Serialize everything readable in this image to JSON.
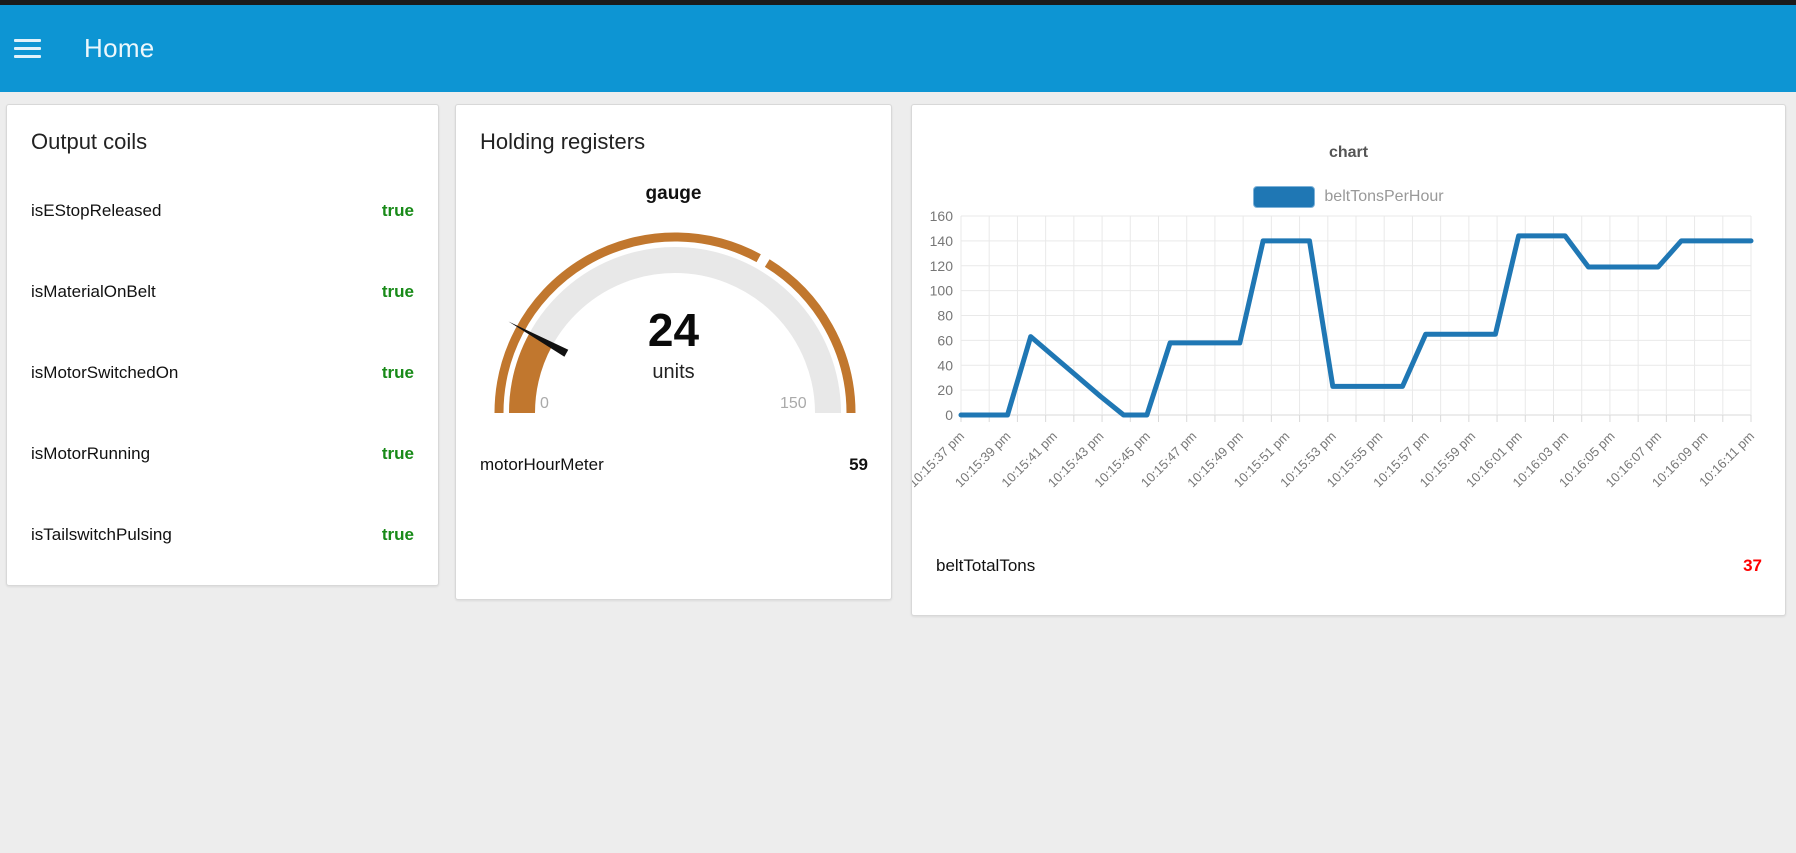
{
  "header": {
    "title": "Home"
  },
  "output_coils": {
    "title": "Output coils",
    "items": [
      {
        "label": "isEStopReleased",
        "value": "true"
      },
      {
        "label": "isMaterialOnBelt",
        "value": "true"
      },
      {
        "label": "isMotorSwitchedOn",
        "value": "true"
      },
      {
        "label": "isMotorRunning",
        "value": "true"
      },
      {
        "label": "isTailswitchPulsing",
        "value": "true"
      }
    ]
  },
  "holding_registers": {
    "title": "Holding registers",
    "gauge": {
      "title": "gauge",
      "value": "24",
      "units": "units",
      "min": 0,
      "max": 150,
      "min_label": "0",
      "max_label": "150",
      "sector_boundary": 100
    },
    "meter": {
      "label": "motorHourMeter",
      "value": "59"
    }
  },
  "chart_card": {
    "total": {
      "label": "beltTotalTons",
      "value": "37"
    }
  },
  "chart_data": {
    "type": "line",
    "title": "chart",
    "legend_position": "top",
    "grid": true,
    "xlabel": "",
    "ylabel": "",
    "ylim": [
      0,
      160
    ],
    "y_ticks": [
      0,
      20,
      40,
      60,
      80,
      100,
      120,
      140,
      160
    ],
    "x_tick_labels": [
      "10:15:37 pm",
      "10:15:39 pm",
      "10:15:41 pm",
      "10:15:43 pm",
      "10:15:45 pm",
      "10:15:47 pm",
      "10:15:49 pm",
      "10:15:51 pm",
      "10:15:53 pm",
      "10:15:55 pm",
      "10:15:57 pm",
      "10:15:59 pm",
      "10:16:01 pm",
      "10:16:03 pm",
      "10:16:05 pm",
      "10:16:07 pm",
      "10:16:09 pm",
      "10:16:11 pm"
    ],
    "sample_interval_seconds": 1,
    "series": [
      {
        "name": "beltTonsPerHour",
        "values": [
          0,
          0,
          0,
          63,
          47,
          31,
          15,
          0,
          0,
          58,
          58,
          58,
          58,
          140,
          140,
          140,
          23,
          23,
          23,
          23,
          65,
          65,
          65,
          65,
          144,
          144,
          144,
          119,
          119,
          119,
          119,
          140,
          140,
          140,
          140
        ]
      }
    ]
  },
  "colors": {
    "header_bg": "#0d95d3",
    "page_bg": "#ededed",
    "card_bg": "#ffffff",
    "true_green": "#188a18",
    "gauge_arc": "#c1772e",
    "gauge_track": "#e8e8e8",
    "needle": "#111111",
    "series_blue": "#1f77b4",
    "total_red": "#ff0000",
    "grid_line": "#e9e9e9",
    "axis_line": "#d9d9d9",
    "axis_text": "#777777",
    "legend_text": "#999999",
    "chart_title_text": "#555555"
  }
}
